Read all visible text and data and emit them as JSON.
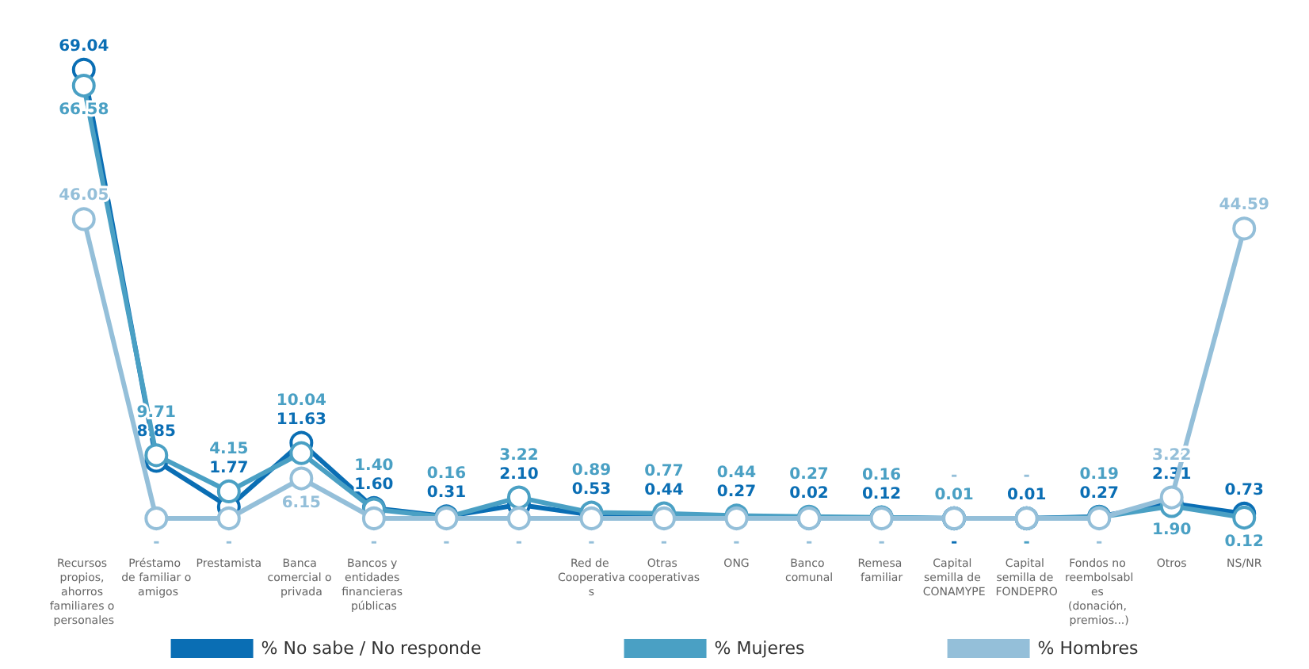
{
  "chart_data": {
    "type": "line",
    "legend": "bottom",
    "grid": false,
    "marker": "circle",
    "tick_labels": "x",
    "categories": [
      "Recursos propios, ahorros familiares o personales",
      "Préstamo de familiar o amigos",
      "Prestamista",
      "Banca comercial o privada",
      "Bancos y entidades financieras públicas",
      null,
      null,
      "Red de Cooperativas",
      "Otras cooperativas",
      "ONG",
      "Banco comunal",
      "Remesa familiar",
      "Capital semilla de CONAMYPE",
      "Capital semilla de FONDEPRO",
      "Fondos no reembolsables (donación, premios...)",
      "Otros",
      "NS/NR"
    ],
    "series": [
      {
        "name": "% No sabe / No responde",
        "color": "#0a6eb4",
        "values": [
          69.04,
          8.85,
          1.77,
          11.63,
          1.6,
          0.31,
          2.1,
          0.53,
          0.44,
          0.27,
          0.02,
          0.12,
          0,
          0.01,
          0.27,
          2.31,
          0.73
        ],
        "value_labels": [
          "69.04",
          "8.85",
          "1.77",
          "11.63",
          "1.60",
          "0.31",
          "2.10",
          "0.53",
          "0.44",
          "0.27",
          "0.02",
          "0.12",
          "-",
          "0.01",
          "0.27",
          "2.31",
          "0.73"
        ]
      },
      {
        "name": "% Mujeres",
        "color": "#4aa0c4",
        "values": [
          66.58,
          9.71,
          4.15,
          10.04,
          1.4,
          0.16,
          3.22,
          0.89,
          0.77,
          0.44,
          0.27,
          0.16,
          0.01,
          0,
          0.19,
          1.9,
          0.12
        ],
        "value_labels": [
          "66.58",
          "9.71",
          "4.15",
          "10.04",
          "1.40",
          "0.16",
          "3.22",
          "0.89",
          "0.77",
          "0.44",
          "0.27",
          "0.16",
          "0.01",
          "-",
          "0.19",
          "1.90",
          "0.12"
        ]
      },
      {
        "name": "% Hombres",
        "color": "#94bfd9",
        "values": [
          46.05,
          0,
          0,
          6.15,
          0,
          0,
          0,
          0,
          0,
          0,
          0,
          0,
          0,
          0,
          0,
          3.22,
          44.59
        ],
        "value_labels": [
          "46.05",
          "-",
          "-",
          "6.15",
          "-",
          "-",
          "-",
          "-",
          "-",
          "-",
          "-",
          "-",
          "-",
          "-",
          "-",
          "3.22",
          "44.59"
        ]
      }
    ]
  }
}
